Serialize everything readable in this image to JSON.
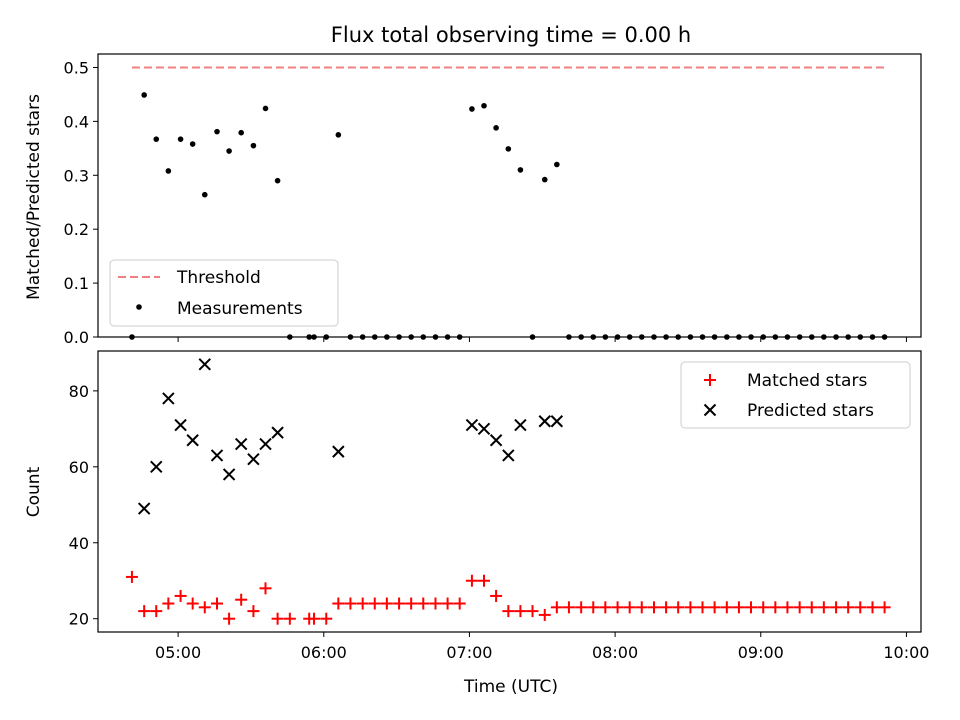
{
  "figure": {
    "title": "Flux total observing time = 0.00 h",
    "xlabel": "Time (UTC)",
    "xticks": [
      "05:00",
      "06:00",
      "07:00",
      "08:00",
      "09:00",
      "10:00"
    ]
  },
  "chart_data": [
    {
      "type": "scatter",
      "title": "Flux total observing time = 0.00 h",
      "ylabel": "Matched/Predicted stars",
      "xlabel": "Time (UTC)",
      "x_unit": "hours UTC",
      "xlim": [
        4.45,
        10.1
      ],
      "ylim": [
        0,
        0.525
      ],
      "yticks": [
        0,
        0.1,
        0.2,
        0.3,
        0.4,
        0.5
      ],
      "ytick_labels": [
        "0.0",
        "0.1",
        "0.2",
        "0.3",
        "0.4",
        "0.5"
      ],
      "threshold": {
        "name": "Threshold",
        "value": 0.5,
        "x_range": [
          4.683,
          9.85
        ],
        "color": "#f08080"
      },
      "legend": {
        "position": "lower-left",
        "entries": [
          "Threshold",
          "Measurements"
        ]
      },
      "series": [
        {
          "name": "Measurements",
          "color": "#000000",
          "points": [
            [
              4.683,
              0
            ],
            [
              4.767,
              0.449
            ],
            [
              4.85,
              0.367
            ],
            [
              4.933,
              0.308
            ],
            [
              5.017,
              0.367
            ],
            [
              5.1,
              0.358
            ],
            [
              5.183,
              0.264
            ],
            [
              5.267,
              0.381
            ],
            [
              5.35,
              0.345
            ],
            [
              5.433,
              0.379
            ],
            [
              5.517,
              0.355
            ],
            [
              5.6,
              0.424
            ],
            [
              5.683,
              0.29
            ],
            [
              5.767,
              0
            ],
            [
              5.9,
              0
            ],
            [
              5.933,
              0
            ],
            [
              6.017,
              0
            ],
            [
              6.1,
              0.375
            ],
            [
              6.183,
              0
            ],
            [
              6.267,
              0
            ],
            [
              6.35,
              0
            ],
            [
              6.433,
              0
            ],
            [
              6.517,
              0
            ],
            [
              6.6,
              0
            ],
            [
              6.683,
              0
            ],
            [
              6.767,
              0
            ],
            [
              6.85,
              0
            ],
            [
              6.933,
              0
            ],
            [
              7.017,
              0.423
            ],
            [
              7.1,
              0.429
            ],
            [
              7.183,
              0.388
            ],
            [
              7.267,
              0.349
            ],
            [
              7.35,
              0.31
            ],
            [
              7.433,
              0
            ],
            [
              7.517,
              0.292
            ],
            [
              7.6,
              0.32
            ],
            [
              7.683,
              0
            ],
            [
              7.767,
              0
            ],
            [
              7.85,
              0
            ],
            [
              7.933,
              0
            ],
            [
              8.017,
              0
            ],
            [
              8.1,
              0
            ],
            [
              8.183,
              0
            ],
            [
              8.267,
              0
            ],
            [
              8.35,
              0
            ],
            [
              8.433,
              0
            ],
            [
              8.517,
              0
            ],
            [
              8.6,
              0
            ],
            [
              8.683,
              0
            ],
            [
              8.767,
              0
            ],
            [
              8.85,
              0
            ],
            [
              8.933,
              0
            ],
            [
              9.017,
              0
            ],
            [
              9.1,
              0
            ],
            [
              9.183,
              0
            ],
            [
              9.267,
              0
            ],
            [
              9.35,
              0
            ],
            [
              9.433,
              0
            ],
            [
              9.517,
              0
            ],
            [
              9.6,
              0
            ],
            [
              9.683,
              0
            ],
            [
              9.767,
              0
            ],
            [
              9.85,
              0
            ]
          ]
        }
      ]
    },
    {
      "type": "scatter",
      "ylabel": "Count",
      "xlabel": "Time (UTC)",
      "x_unit": "hours UTC",
      "xlim": [
        4.45,
        10.1
      ],
      "ylim": [
        16.5,
        90.5
      ],
      "yticks": [
        20,
        40,
        60,
        80
      ],
      "ytick_labels": [
        "20",
        "40",
        "60",
        "80"
      ],
      "legend": {
        "position": "top-right",
        "entries": [
          "Matched stars",
          "Predicted stars"
        ]
      },
      "series": [
        {
          "name": "Matched stars",
          "marker": "+",
          "color": "#ff0000",
          "points": [
            [
              4.683,
              31
            ],
            [
              4.767,
              22
            ],
            [
              4.85,
              22
            ],
            [
              4.933,
              24
            ],
            [
              5.017,
              26
            ],
            [
              5.1,
              24
            ],
            [
              5.183,
              23
            ],
            [
              5.267,
              24
            ],
            [
              5.35,
              20
            ],
            [
              5.433,
              25
            ],
            [
              5.517,
              22
            ],
            [
              5.6,
              28
            ],
            [
              5.683,
              20
            ],
            [
              5.767,
              20
            ],
            [
              5.9,
              20
            ],
            [
              5.933,
              20
            ],
            [
              6.017,
              20
            ],
            [
              6.1,
              24
            ],
            [
              6.183,
              24
            ],
            [
              6.267,
              24
            ],
            [
              6.35,
              24
            ],
            [
              6.433,
              24
            ],
            [
              6.517,
              24
            ],
            [
              6.6,
              24
            ],
            [
              6.683,
              24
            ],
            [
              6.767,
              24
            ],
            [
              6.85,
              24
            ],
            [
              6.933,
              24
            ],
            [
              7.017,
              30
            ],
            [
              7.1,
              30
            ],
            [
              7.183,
              26
            ],
            [
              7.267,
              22
            ],
            [
              7.35,
              22
            ],
            [
              7.433,
              22
            ],
            [
              7.517,
              21
            ],
            [
              7.6,
              23
            ],
            [
              7.683,
              23
            ],
            [
              7.767,
              23
            ],
            [
              7.85,
              23
            ],
            [
              7.933,
              23
            ],
            [
              8.017,
              23
            ],
            [
              8.1,
              23
            ],
            [
              8.183,
              23
            ],
            [
              8.267,
              23
            ],
            [
              8.35,
              23
            ],
            [
              8.433,
              23
            ],
            [
              8.517,
              23
            ],
            [
              8.6,
              23
            ],
            [
              8.683,
              23
            ],
            [
              8.767,
              23
            ],
            [
              8.85,
              23
            ],
            [
              8.933,
              23
            ],
            [
              9.017,
              23
            ],
            [
              9.1,
              23
            ],
            [
              9.183,
              23
            ],
            [
              9.267,
              23
            ],
            [
              9.35,
              23
            ],
            [
              9.433,
              23
            ],
            [
              9.517,
              23
            ],
            [
              9.6,
              23
            ],
            [
              9.683,
              23
            ],
            [
              9.767,
              23
            ],
            [
              9.85,
              23
            ]
          ]
        },
        {
          "name": "Predicted stars",
          "marker": "x",
          "color": "#000000",
          "points": [
            [
              4.767,
              49
            ],
            [
              4.85,
              60
            ],
            [
              4.933,
              78
            ],
            [
              5.017,
              71
            ],
            [
              5.1,
              67
            ],
            [
              5.183,
              87
            ],
            [
              5.267,
              63
            ],
            [
              5.35,
              58
            ],
            [
              5.433,
              66
            ],
            [
              5.517,
              62
            ],
            [
              5.6,
              66
            ],
            [
              5.683,
              69
            ],
            [
              6.1,
              64
            ],
            [
              7.017,
              71
            ],
            [
              7.1,
              70
            ],
            [
              7.183,
              67
            ],
            [
              7.267,
              63
            ],
            [
              7.35,
              71
            ],
            [
              7.517,
              72
            ],
            [
              7.6,
              72
            ]
          ]
        }
      ]
    }
  ]
}
